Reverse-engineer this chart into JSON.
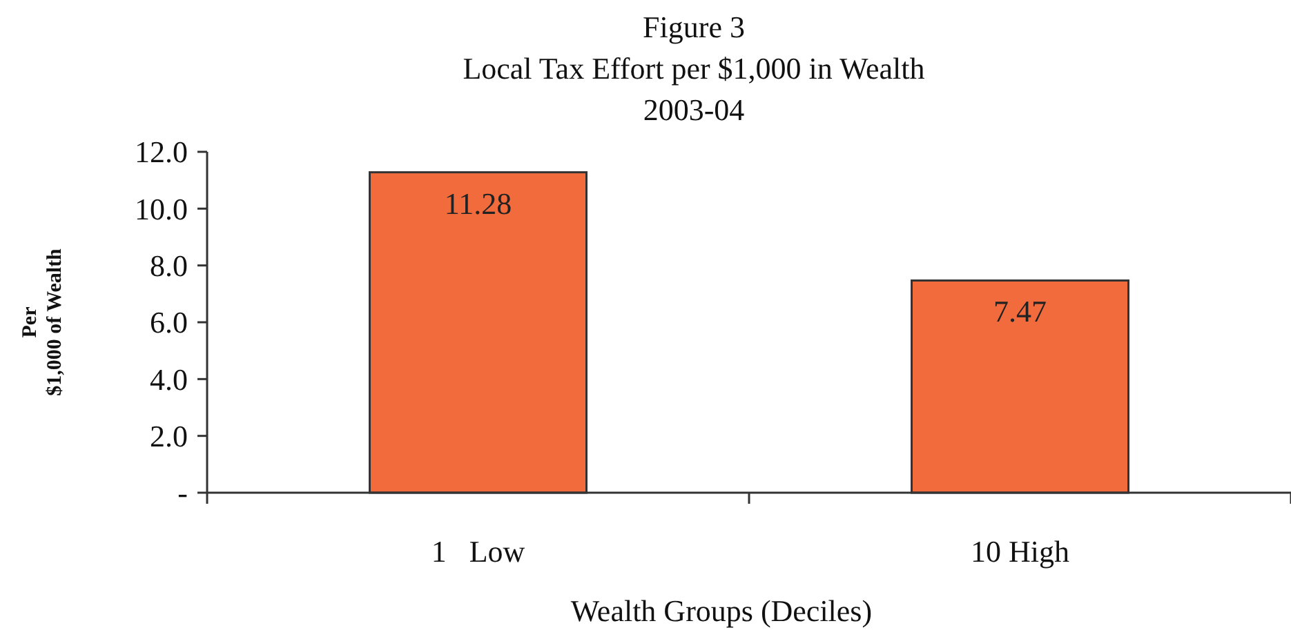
{
  "chart_data": {
    "type": "bar",
    "title": "Figure 3\nLocal Tax Effort per $1,000 in Wealth\n2003-04",
    "xlabel": "Wealth Groups (Deciles)",
    "ylabel": "Per\n$1,000 of Wealth",
    "categories": [
      "1   Low",
      "10 High"
    ],
    "values": [
      11.28,
      7.47
    ],
    "color": "#f26b3c",
    "ylim": [
      0,
      12
    ],
    "yticks": [
      {
        "value": 0,
        "label": "-"
      },
      {
        "value": 2,
        "label": "2.0"
      },
      {
        "value": 4,
        "label": "4.0"
      },
      {
        "value": 6,
        "label": "6.0"
      },
      {
        "value": 8,
        "label": "8.0"
      },
      {
        "value": 10,
        "label": "10.0"
      },
      {
        "value": 12,
        "label": "12.0"
      }
    ],
    "data_labels": true,
    "grid": false
  }
}
